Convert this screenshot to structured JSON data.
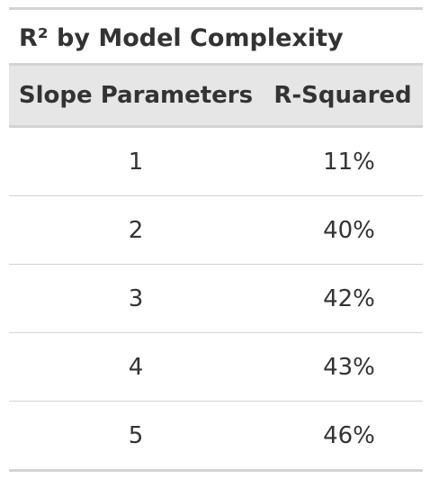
{
  "chart_data": {
    "type": "table",
    "title": "R² by Model Complexity",
    "columns": [
      "Slope Parameters",
      "R-Squared"
    ],
    "rows": [
      [
        "1",
        "11%"
      ],
      [
        "2",
        "40%"
      ],
      [
        "3",
        "42%"
      ],
      [
        "4",
        "43%"
      ],
      [
        "5",
        "46%"
      ]
    ],
    "slope_parameters": [
      1,
      2,
      3,
      4,
      5
    ],
    "r_squared": [
      0.11,
      0.4,
      0.42,
      0.43,
      0.46
    ]
  }
}
